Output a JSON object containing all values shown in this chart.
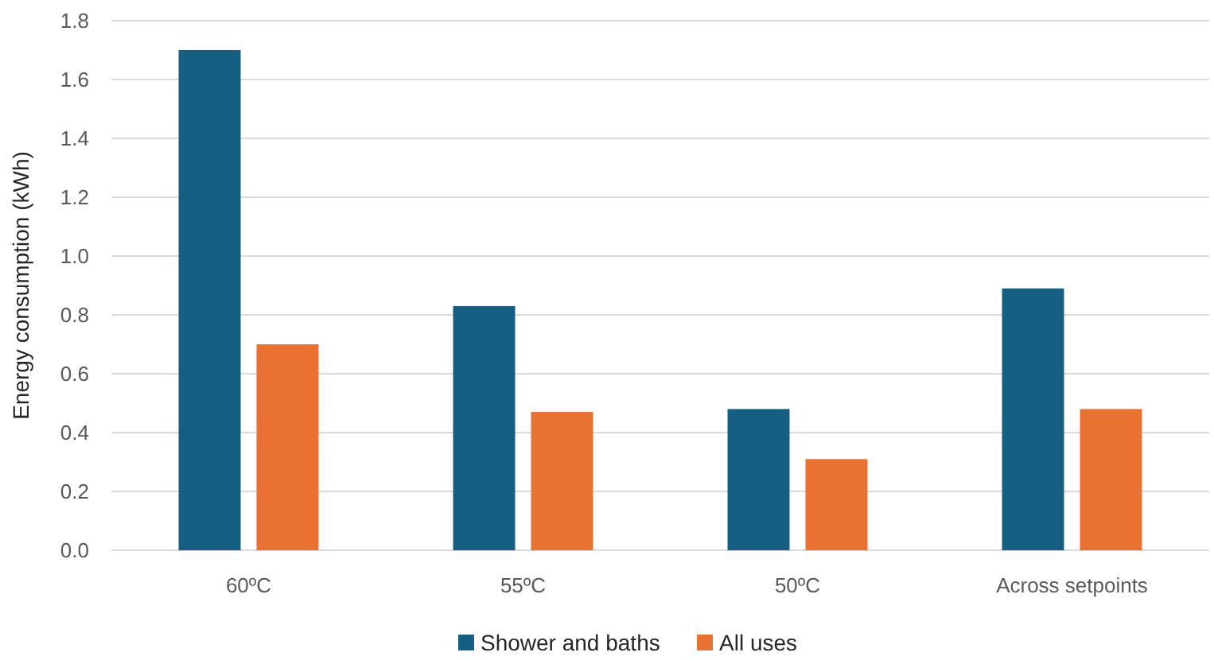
{
  "chart_data": {
    "type": "bar",
    "ylabel": "Energy consumption (kWh)",
    "categories": [
      "60ºC",
      "55ºC",
      "50ºC",
      "Across setpoints"
    ],
    "series": [
      {
        "name": "Shower and baths",
        "color": "#156082",
        "values": [
          1.7,
          0.83,
          0.48,
          0.89
        ]
      },
      {
        "name": "All uses",
        "color": "#e97132",
        "values": [
          0.7,
          0.47,
          0.31,
          0.48
        ]
      }
    ],
    "ylim": [
      0,
      1.8
    ],
    "yticks": [
      {
        "value": 0,
        "label": "0.0"
      },
      0.2,
      0.4,
      0.6,
      0.8,
      {
        "value": 1,
        "label": "1.0"
      },
      1.2,
      1.4,
      1.6,
      1.8
    ],
    "grid": "y",
    "legend": "bottom"
  }
}
